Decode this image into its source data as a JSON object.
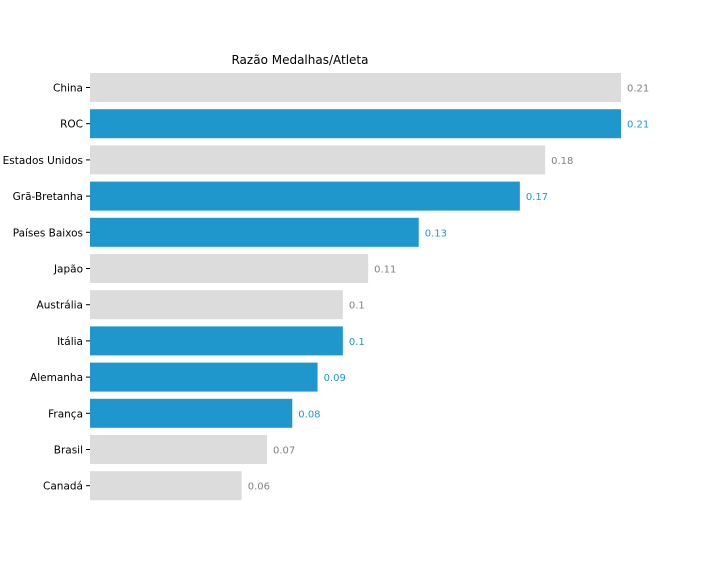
{
  "chart_data": {
    "type": "bar",
    "orientation": "horizontal",
    "title": "Razão Medalhas/Atleta",
    "xlabel": "",
    "ylabel": "",
    "xlim": [
      0,
      0.21
    ],
    "grid": false,
    "categories": [
      "China",
      "ROC",
      "Estados Unidos",
      "Grã-Bretanha",
      "Países Baixos",
      "Japão",
      "Austrália",
      "Itália",
      "Alemanha",
      "França",
      "Brasil",
      "Canadá"
    ],
    "values": [
      0.21,
      0.21,
      0.18,
      0.17,
      0.13,
      0.11,
      0.1,
      0.1,
      0.09,
      0.08,
      0.07,
      0.06
    ],
    "value_labels": [
      "0.21",
      "0.21",
      "0.18",
      "0.17",
      "0.13",
      "0.11",
      "0.1",
      "0.1",
      "0.09",
      "0.08",
      "0.07",
      "0.06"
    ],
    "highlighted": [
      false,
      true,
      false,
      true,
      true,
      false,
      false,
      true,
      true,
      true,
      false,
      false
    ],
    "colors": {
      "highlight": "#1f97cc",
      "default": "#dcdcdc",
      "highlight_label": "#1f97cc",
      "default_label": "#808080"
    }
  }
}
